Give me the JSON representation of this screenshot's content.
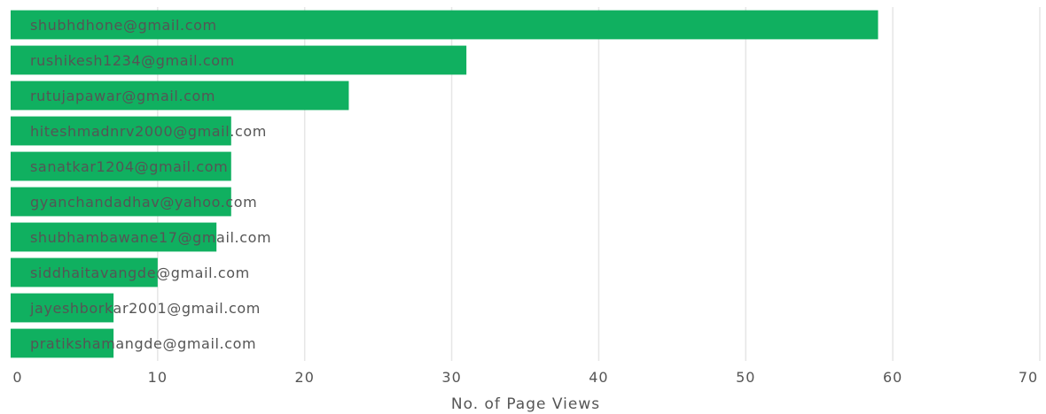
{
  "chart_data": {
    "type": "bar",
    "orientation": "horizontal",
    "categories": [
      "shubhdhone@gmail.com",
      "rushikesh1234@gmail.com",
      "rutujapawar@gmail.com",
      "hiteshmadnrv2000@gmail.com",
      "sanatkar1204@gmail.com",
      "gyanchandadhav@yahoo.com",
      "shubhambawane17@gmail.com",
      "siddhaitavangde@gmail.com",
      "jayeshborkar2001@gmail.com",
      "pratikshamangde@gmail.com"
    ],
    "values": [
      59,
      31,
      23,
      15,
      15,
      15,
      14,
      10,
      7,
      7
    ],
    "xlabel": "No. of Page Views",
    "xlim": [
      0,
      70
    ],
    "xticks": [
      "0",
      "10",
      "20",
      "30",
      "40",
      "50",
      "60",
      "70"
    ],
    "bar_color": "#10b060",
    "grid": true
  }
}
